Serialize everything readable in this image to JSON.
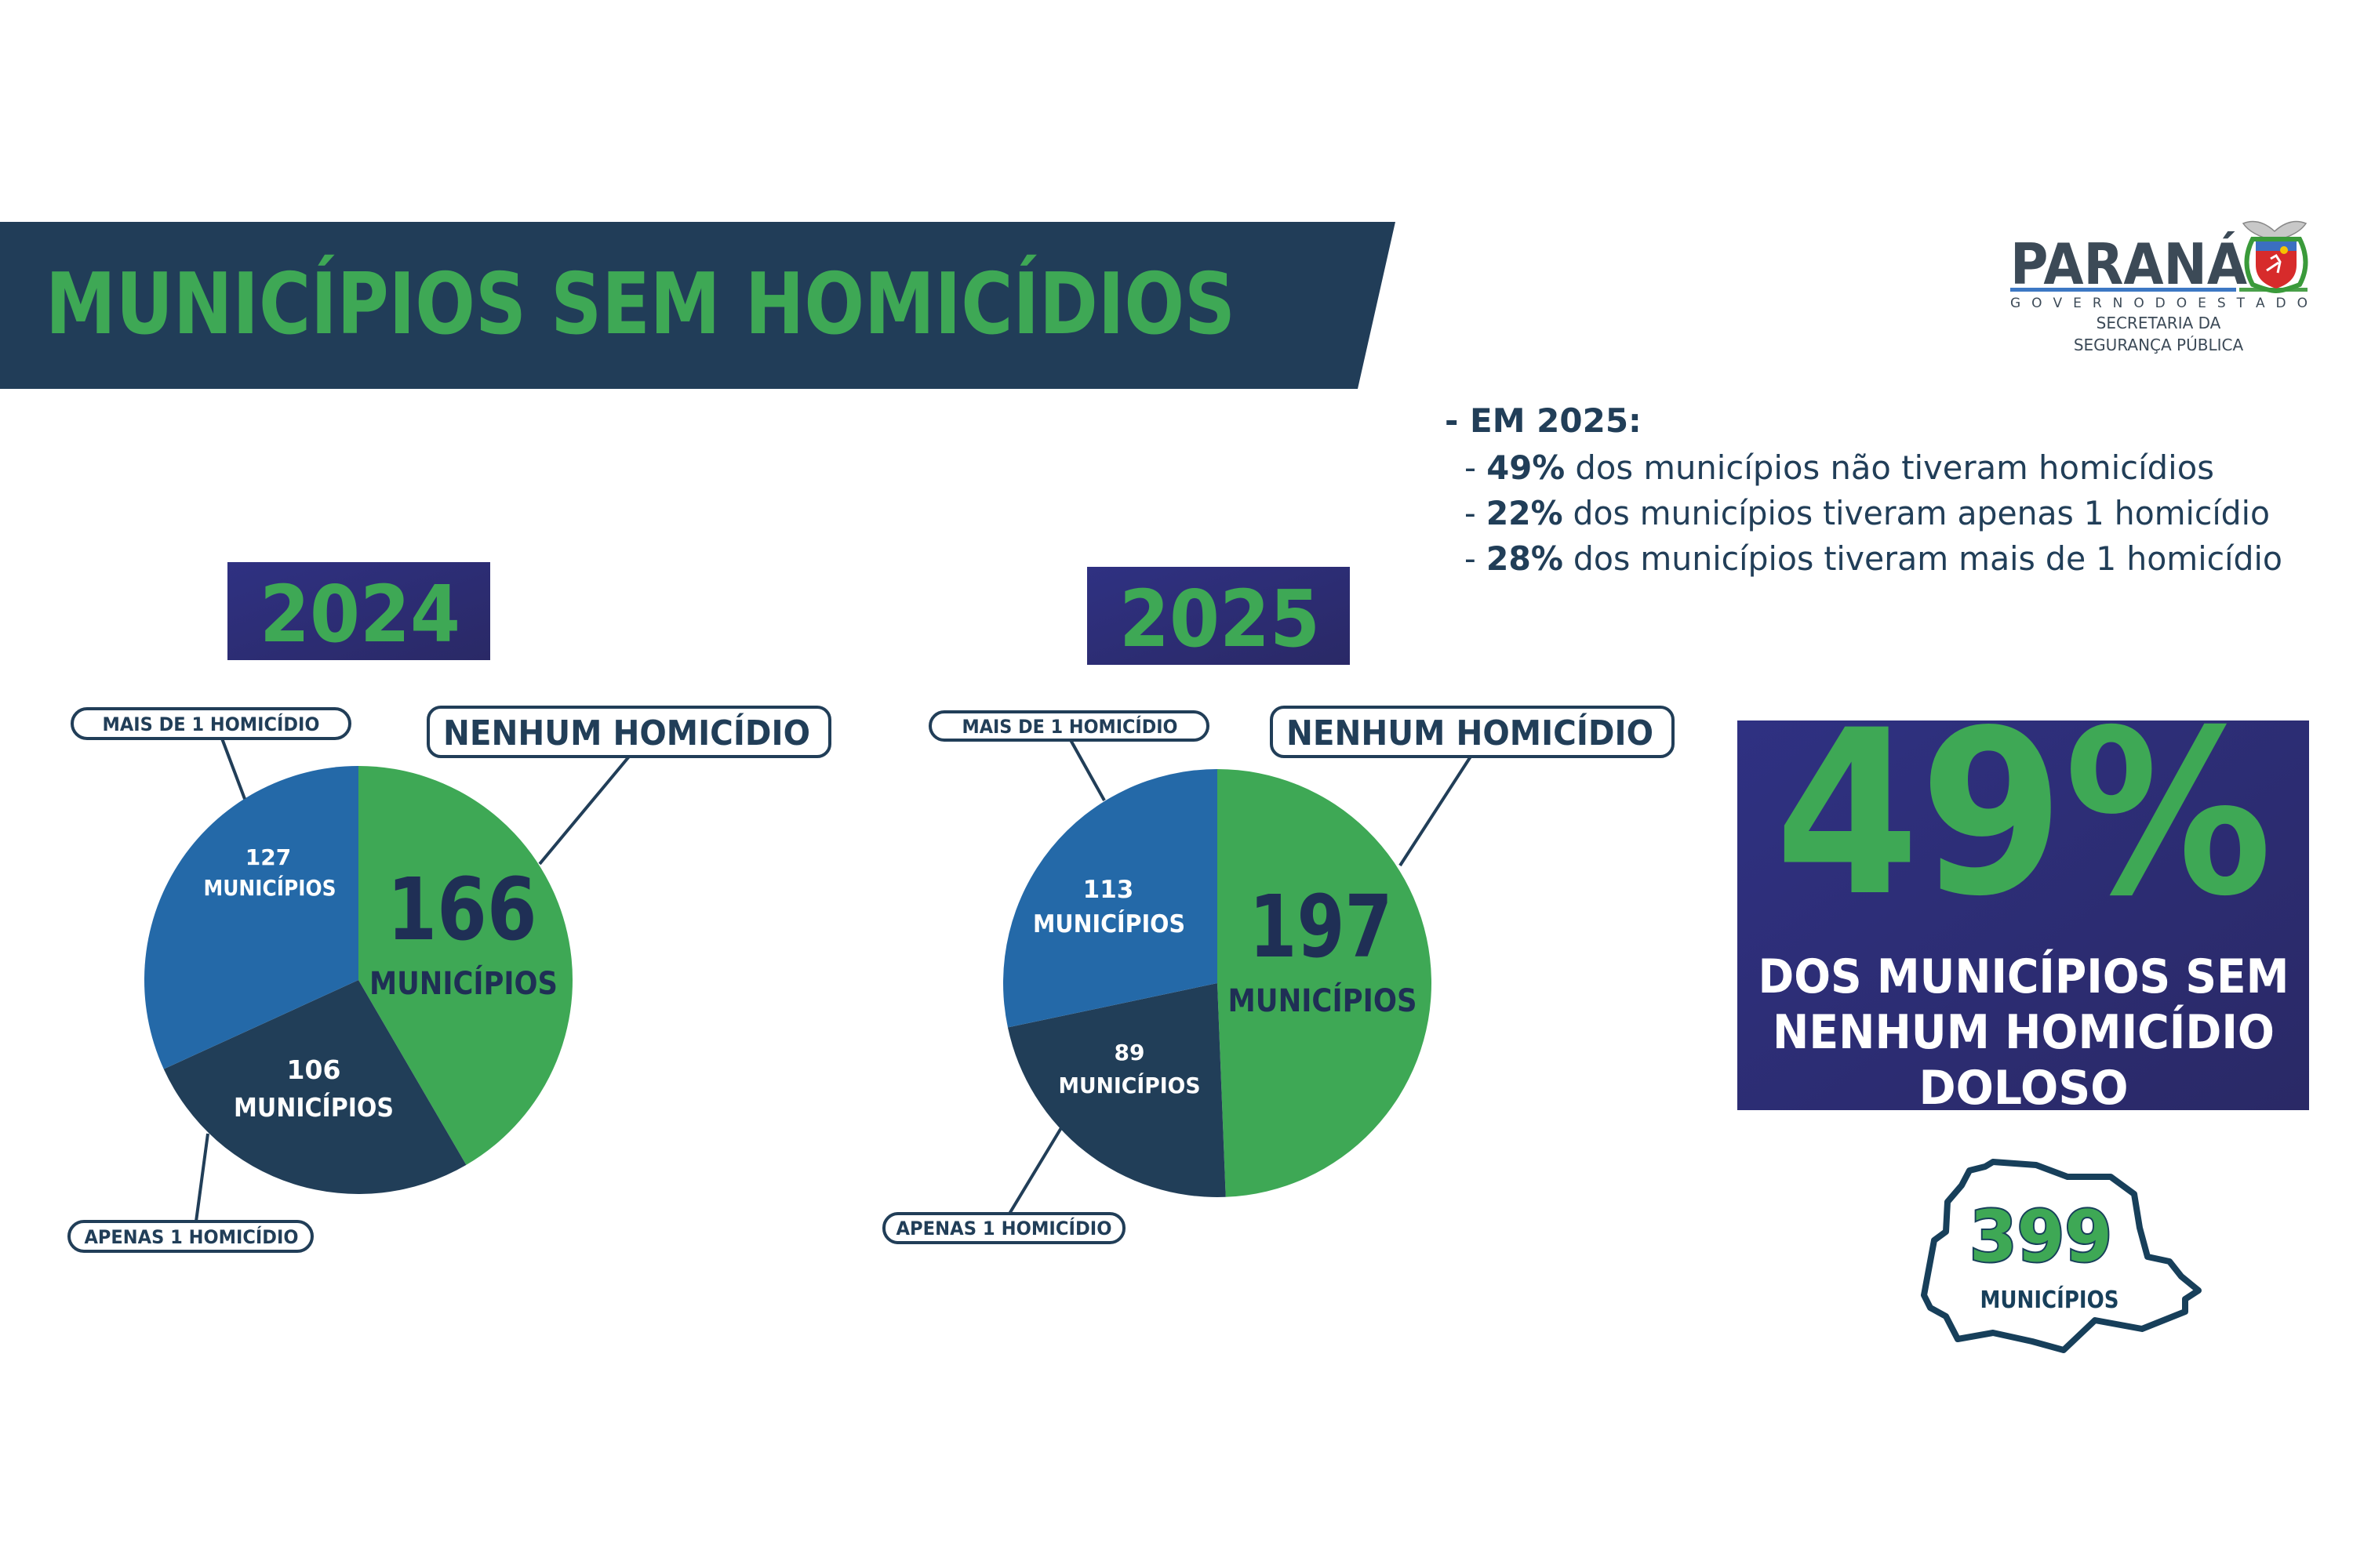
{
  "header": {
    "title": "MUNICÍPIOS SEM HOMICÍDIOS"
  },
  "logo": {
    "name": "PARANÁ",
    "subtitle": "G O V E R N O   D O   E S T A D O",
    "dept_line1": "SECRETARIA DA",
    "dept_line2": "SEGURANÇA PÚBLICA",
    "emblem": "parana-coat-of-arms-icon"
  },
  "summary": {
    "heading": "- EM 2025:",
    "items": [
      {
        "dash": "- ",
        "pct": "49%",
        "text": " dos municípios não tiveram homicídios"
      },
      {
        "dash": "- ",
        "pct": "22%",
        "text": " dos municípios tiveram apenas 1 homicídio"
      },
      {
        "dash": "- ",
        "pct": "28%",
        "text": " dos municípios tiveram mais de 1 homicídio"
      }
    ]
  },
  "highlight": {
    "value": "49%",
    "line1": "DOS MUNICÍPIOS SEM",
    "line2": "NENHUM HOMICÍDIO",
    "line3": "DOLOSO"
  },
  "state_total": {
    "value": "399",
    "label": "MUNICÍPIOS",
    "icon": "parana-state-map-icon"
  },
  "colors": {
    "green": "#3ea855",
    "navy": "#213e58",
    "blue": "#2469a8",
    "purple": "#2e2f7a",
    "banner": "#213d58"
  },
  "chart_data": [
    {
      "type": "pie",
      "title": "2024",
      "categories": [
        "NENHUM HOMICÍDIO",
        "APENAS 1 HOMICÍDIO",
        "MAIS DE 1 HOMICÍDIO"
      ],
      "values": [
        166,
        106,
        127
      ],
      "value_labels": [
        {
          "num": "166",
          "unit": "MUNICÍPIOS"
        },
        {
          "num": "106",
          "unit": "MUNICÍPIOS"
        },
        {
          "num": "127",
          "unit": "MUNICÍPIOS"
        }
      ],
      "colors": [
        "#3ea855",
        "#213e58",
        "#2469a8"
      ]
    },
    {
      "type": "pie",
      "title": "2025",
      "categories": [
        "NENHUM HOMICÍDIO",
        "APENAS 1 HOMICÍDIO",
        "MAIS DE 1 HOMICÍDIO"
      ],
      "values": [
        197,
        89,
        113
      ],
      "value_labels": [
        {
          "num": "197",
          "unit": "MUNICÍPIOS"
        },
        {
          "num": "89",
          "unit": "MUNICÍPIOS"
        },
        {
          "num": "113",
          "unit": "MUNICÍPIOS"
        }
      ],
      "colors": [
        "#3ea855",
        "#213e58",
        "#2469a8"
      ]
    }
  ]
}
